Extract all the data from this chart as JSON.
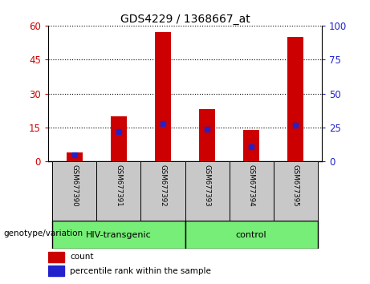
{
  "title": "GDS4229 / 1368667_at",
  "samples": [
    "GSM677390",
    "GSM677391",
    "GSM677392",
    "GSM677393",
    "GSM677394",
    "GSM677395"
  ],
  "count_values": [
    4,
    20,
    57,
    23,
    14,
    55
  ],
  "percentile_values": [
    5,
    22,
    28,
    24,
    11,
    27
  ],
  "groups": [
    {
      "label": "HIV-transgenic",
      "indices": [
        0,
        1,
        2
      ],
      "color": "#77EE77"
    },
    {
      "label": "control",
      "indices": [
        3,
        4,
        5
      ],
      "color": "#77EE77"
    }
  ],
  "ylim_left": [
    0,
    60
  ],
  "ylim_right": [
    0,
    100
  ],
  "yticks_left": [
    0,
    15,
    30,
    45,
    60
  ],
  "yticks_right": [
    0,
    25,
    50,
    75,
    100
  ],
  "bar_width": 0.35,
  "count_color": "#CC0000",
  "percentile_color": "#2222CC",
  "grid_color": "#000000",
  "sample_bg_color": "#C8C8C8",
  "group_label": "genotype/variation",
  "legend_count": "count",
  "legend_percentile": "percentile rank within the sample",
  "left_tick_color": "#CC0000",
  "right_tick_color": "#2222CC"
}
